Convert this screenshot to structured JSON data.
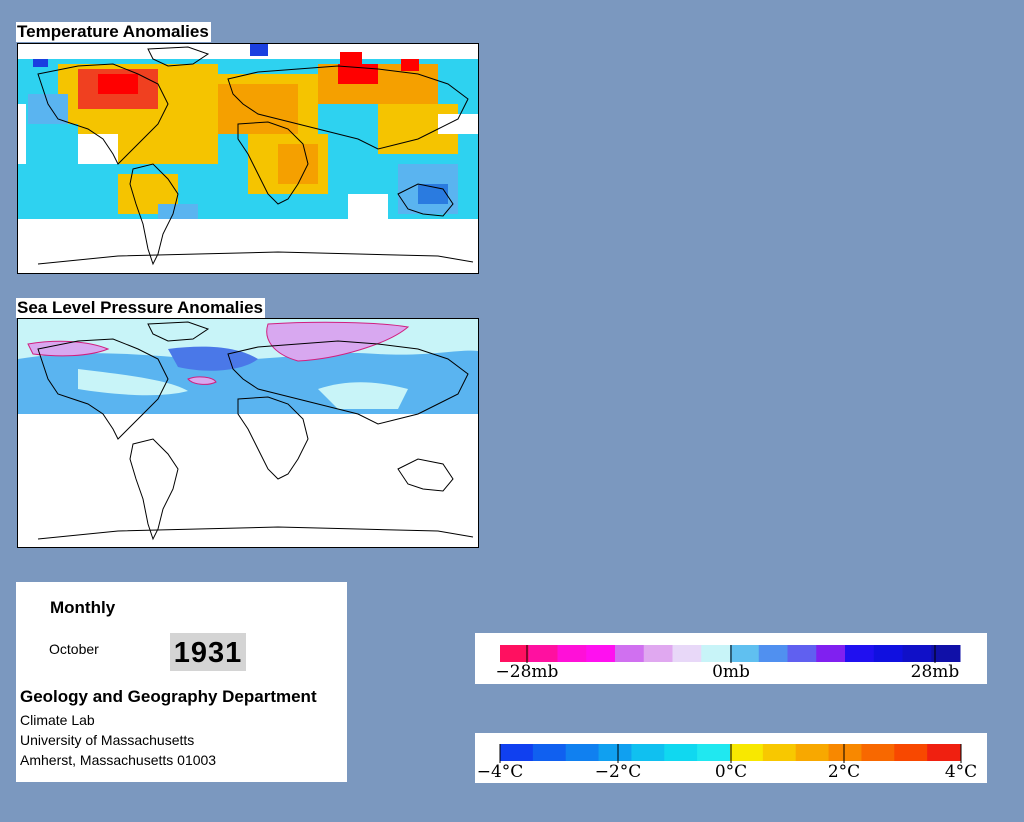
{
  "temperature_map": {
    "title": "Temperature Anomalies",
    "colors": {
      "cold_2": "#2a7be0",
      "cold_1": "#5ab4f0",
      "neutral_cold": "#2ed2f0",
      "warm_1": "#f5c400",
      "warm_2": "#f5a000",
      "hot": "#f04020",
      "extreme": "#ff0000",
      "extreme_cold": "#1a3fe0",
      "missing": "#ffffff"
    }
  },
  "pressure_map": {
    "title": "Sea Level Pressure Anomalies",
    "colors": {
      "pale": "#c8f4f8",
      "blue_1": "#5ab4f0",
      "blue_2": "#4a78e8",
      "purple": "#d8a8f0",
      "pink_line": "#d02080",
      "missing": "#ffffff"
    }
  },
  "info": {
    "period": "Monthly",
    "month": "October",
    "year": "1931",
    "department": "Geology and Geography Department",
    "lines": [
      "Climate Lab",
      "University of Massachusetts",
      "Amherst, Massachusetts 01003"
    ]
  },
  "pressure_legend": {
    "ticks": [
      "−28mb",
      "0mb",
      "28mb"
    ],
    "colors": [
      "#ff1060",
      "#ff10a0",
      "#ff10d8",
      "#ff10f0",
      "#d070f0",
      "#e0a8f0",
      "#e8d8f8",
      "#c8f4f8",
      "#60c0f0",
      "#5090f0",
      "#6060f0",
      "#8020f0",
      "#2010f0",
      "#1010e0",
      "#1010c8",
      "#1010a8"
    ]
  },
  "temperature_legend": {
    "ticks": [
      "−4°C",
      "−2°C",
      "0°C",
      "2°C",
      "4°C"
    ],
    "colors": [
      "#1040f0",
      "#1060f0",
      "#1080f0",
      "#10a0f0",
      "#10c0f0",
      "#10d8f0",
      "#20e8f0",
      "#f8e800",
      "#f8c800",
      "#f8a800",
      "#f88800",
      "#f86800",
      "#f84800",
      "#f02010"
    ]
  }
}
